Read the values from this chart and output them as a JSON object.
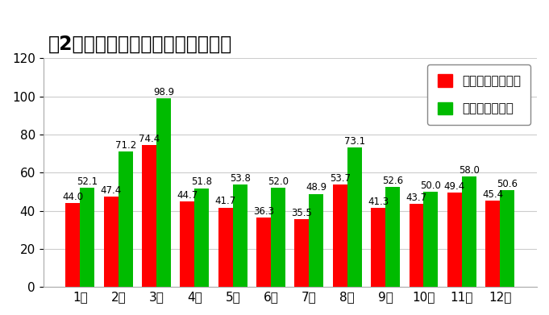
{
  "title": "【2年間】ディズニー月別混雑状況",
  "months": [
    "1月",
    "2月",
    "3月",
    "4月",
    "5月",
    "6月",
    "7月",
    "8月",
    "9月",
    "10月",
    "11月",
    "12月"
  ],
  "disneyland": [
    44.0,
    47.4,
    74.4,
    44.7,
    41.7,
    36.3,
    35.5,
    53.7,
    41.3,
    43.7,
    49.4,
    45.4
  ],
  "disneysea": [
    52.1,
    71.2,
    98.9,
    51.8,
    53.8,
    52.0,
    48.9,
    73.1,
    52.6,
    50.0,
    58.0,
    50.6
  ],
  "land_color": "#ff0000",
  "sea_color": "#00bb00",
  "land_label": "ディズニーランド",
  "sea_label": "ディズニーシー",
  "ylim": [
    0,
    120
  ],
  "yticks": [
    0,
    20,
    40,
    60,
    80,
    100,
    120
  ],
  "background_color": "#ffffff",
  "plot_bg_color": "#ffffff",
  "grid_color": "#cccccc",
  "title_fontsize": 17,
  "legend_fontsize": 11,
  "tick_fontsize": 11,
  "annotation_fontsize": 8.5
}
